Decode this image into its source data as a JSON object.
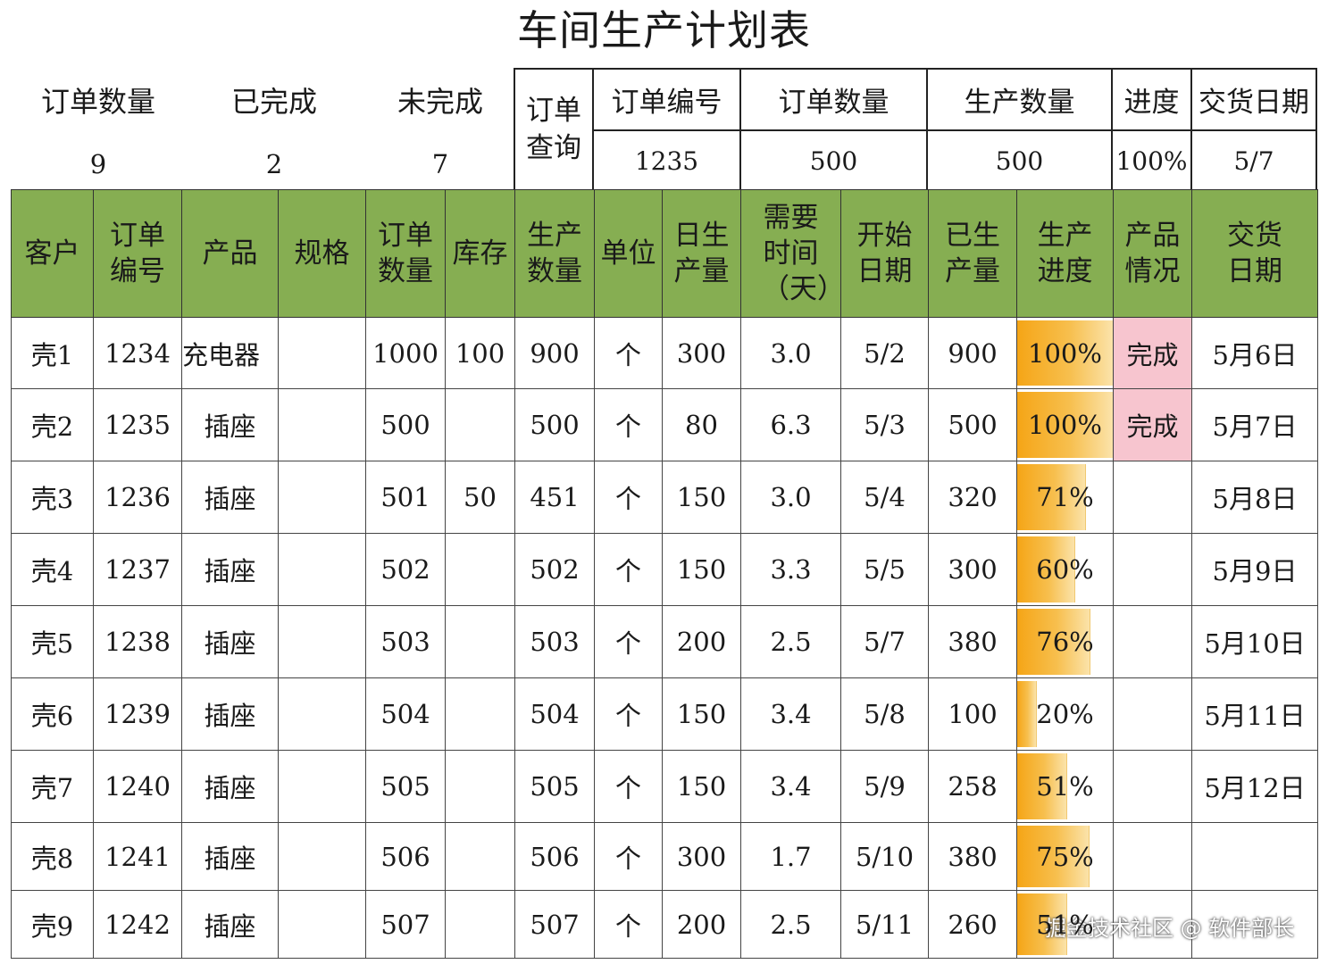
{
  "title": "车间生产计划表",
  "summary": {
    "order_count_label": "订单数量",
    "order_count": "9",
    "completed_label": "已完成",
    "completed": "2",
    "pending_label": "未完成",
    "pending": "7"
  },
  "query": {
    "label": "订单查询",
    "headers": [
      "订单编号",
      "订单数量",
      "生产数量",
      "进度",
      "交货日期"
    ],
    "values": [
      "1235",
      "500",
      "500",
      "100%",
      "5/7"
    ]
  },
  "table": {
    "headers": [
      "客户",
      "订单编号",
      "产品",
      "规格",
      "订单数量",
      "库存",
      "生产数量",
      "单位",
      "日生产量",
      "需要时间（天）",
      "开始日期",
      "已生产量",
      "生产进度",
      "产品情况",
      "交货日期"
    ],
    "rows": [
      {
        "customer": "壳1",
        "order_no": "1234",
        "product": "充电器",
        "spec": "",
        "qty": "1000",
        "stock": "100",
        "prod_qty": "900",
        "unit": "个",
        "daily": "300",
        "days": "3.0",
        "start": "5/2",
        "produced": "900",
        "progress": 1.0,
        "progress_label": "100%",
        "status": "完成",
        "delivery": "5月6日"
      },
      {
        "customer": "壳2",
        "order_no": "1235",
        "product": "插座",
        "spec": "",
        "qty": "500",
        "stock": "",
        "prod_qty": "500",
        "unit": "个",
        "daily": "80",
        "days": "6.3",
        "start": "5/3",
        "produced": "500",
        "progress": 1.0,
        "progress_label": "100%",
        "status": "完成",
        "delivery": "5月7日"
      },
      {
        "customer": "壳3",
        "order_no": "1236",
        "product": "插座",
        "spec": "",
        "qty": "501",
        "stock": "50",
        "prod_qty": "451",
        "unit": "个",
        "daily": "150",
        "days": "3.0",
        "start": "5/4",
        "produced": "320",
        "progress": 0.71,
        "progress_label": "71%",
        "status": "",
        "delivery": "5月8日"
      },
      {
        "customer": "壳4",
        "order_no": "1237",
        "product": "插座",
        "spec": "",
        "qty": "502",
        "stock": "",
        "prod_qty": "502",
        "unit": "个",
        "daily": "150",
        "days": "3.3",
        "start": "5/5",
        "produced": "300",
        "progress": 0.6,
        "progress_label": "60%",
        "status": "",
        "delivery": "5月9日"
      },
      {
        "customer": "壳5",
        "order_no": "1238",
        "product": "插座",
        "spec": "",
        "qty": "503",
        "stock": "",
        "prod_qty": "503",
        "unit": "个",
        "daily": "200",
        "days": "2.5",
        "start": "5/7",
        "produced": "380",
        "progress": 0.76,
        "progress_label": "76%",
        "status": "",
        "delivery": "5月10日"
      },
      {
        "customer": "壳6",
        "order_no": "1239",
        "product": "插座",
        "spec": "",
        "qty": "504",
        "stock": "",
        "prod_qty": "504",
        "unit": "个",
        "daily": "150",
        "days": "3.4",
        "start": "5/8",
        "produced": "100",
        "progress": 0.2,
        "progress_label": "20%",
        "status": "",
        "delivery": "5月11日"
      },
      {
        "customer": "壳7",
        "order_no": "1240",
        "product": "插座",
        "spec": "",
        "qty": "505",
        "stock": "",
        "prod_qty": "505",
        "unit": "个",
        "daily": "150",
        "days": "3.4",
        "start": "5/9",
        "produced": "258",
        "progress": 0.51,
        "progress_label": "51%",
        "status": "",
        "delivery": "5月12日"
      },
      {
        "customer": "壳8",
        "order_no": "1241",
        "product": "插座",
        "spec": "",
        "qty": "506",
        "stock": "",
        "prod_qty": "506",
        "unit": "个",
        "daily": "300",
        "days": "1.7",
        "start": "5/10",
        "produced": "380",
        "progress": 0.75,
        "progress_label": "75%",
        "status": "",
        "delivery": ""
      },
      {
        "customer": "壳9",
        "order_no": "1242",
        "product": "插座",
        "spec": "",
        "qty": "507",
        "stock": "",
        "prod_qty": "507",
        "unit": "个",
        "daily": "200",
        "days": "2.5",
        "start": "5/11",
        "produced": "260",
        "progress": 0.51,
        "progress_label": "51%",
        "status": "",
        "delivery": ""
      }
    ]
  },
  "colors": {
    "header_bg": "#86ae52",
    "done_bg": "#f7c5cf",
    "bar": "#f5a516"
  },
  "watermark": "掘金技术社区 @ 软件部长"
}
